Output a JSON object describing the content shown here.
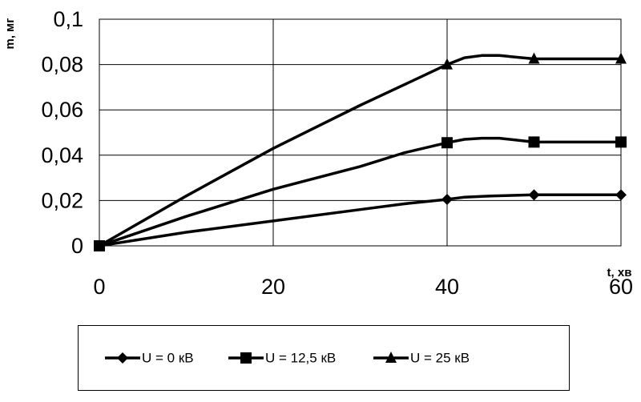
{
  "chart_data": {
    "type": "line",
    "title": "",
    "xlabel": "t, хв",
    "ylabel": "m, мг",
    "xlim": [
      0,
      60
    ],
    "ylim": [
      0,
      0.1
    ],
    "xticks": [
      0,
      20,
      40,
      60
    ],
    "xtick_labels": [
      "0",
      "20",
      "40",
      "60"
    ],
    "yticks": [
      0,
      0.02,
      0.04,
      0.06,
      0.08,
      0.1
    ],
    "ytick_labels": [
      "0",
      "0,02",
      "0,04",
      "0,06",
      "0,08",
      "0,1"
    ],
    "grid": true,
    "legend_position": "bottom",
    "series": [
      {
        "name": "U = 0 кВ",
        "marker": "diamond",
        "markers_x": [
          0,
          40,
          50,
          60
        ],
        "x": [
          0,
          10,
          20,
          30,
          35,
          40,
          42,
          45,
          50,
          55,
          60
        ],
        "y": [
          0,
          0.006,
          0.011,
          0.016,
          0.0185,
          0.0205,
          0.0215,
          0.022,
          0.0225,
          0.0225,
          0.0225
        ]
      },
      {
        "name": "U = 12,5 кВ",
        "marker": "square",
        "markers_x": [
          0,
          40,
          50,
          60
        ],
        "x": [
          0,
          10,
          20,
          30,
          35,
          40,
          42,
          44,
          46,
          50,
          55,
          60
        ],
        "y": [
          0,
          0.013,
          0.025,
          0.035,
          0.041,
          0.0455,
          0.047,
          0.0475,
          0.0475,
          0.0458,
          0.0458,
          0.0458
        ]
      },
      {
        "name": "U = 25 кВ",
        "marker": "triangle",
        "markers_x": [
          0,
          40,
          50,
          60
        ],
        "x": [
          0,
          10,
          20,
          30,
          35,
          40,
          42,
          44,
          46,
          50,
          55,
          60
        ],
        "y": [
          0,
          0.022,
          0.043,
          0.062,
          0.071,
          0.08,
          0.083,
          0.084,
          0.084,
          0.0825,
          0.0825,
          0.0825
        ]
      }
    ]
  },
  "colors": {
    "line": "#000000",
    "grid": "#000000",
    "background": "#ffffff"
  }
}
